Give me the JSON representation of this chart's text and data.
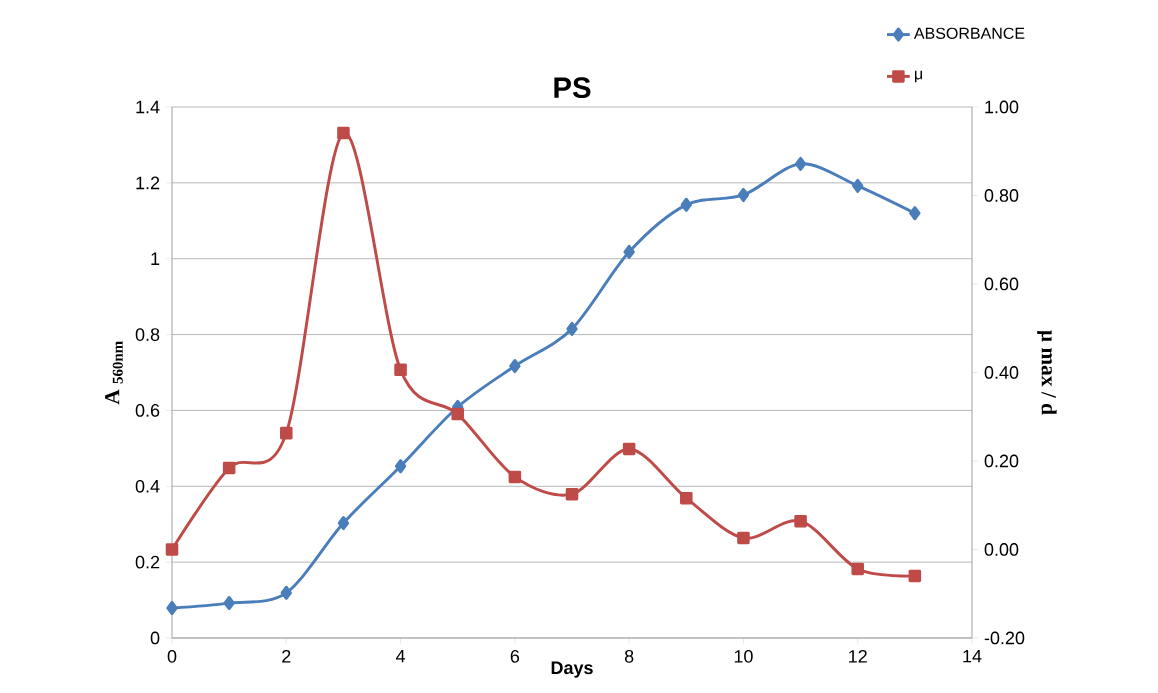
{
  "chart_data": {
    "type": "line",
    "title": "PS",
    "xlabel": "Days",
    "ylabel": "A $_{560nm}$",
    "y2label": "μ max / d",
    "x": [
      0,
      1,
      2,
      3,
      4,
      5,
      6,
      7,
      8,
      9,
      10,
      11,
      12,
      13
    ],
    "series": [
      {
        "name": "ABSORBANCE",
        "color": "#4a7ebb",
        "marker": "diamond",
        "values": [
          0.079,
          0.092,
          0.119,
          0.303,
          0.453,
          0.609,
          0.717,
          0.815,
          1.018,
          1.142,
          1.168,
          1.25,
          1.192,
          1.12
        ]
      },
      {
        "name": "μ",
        "color": "#be4b48",
        "marker": "square",
        "axis": "y2",
        "values": [
          0.0,
          0.184,
          0.263,
          0.941,
          0.406,
          0.306,
          0.164,
          0.125,
          0.227,
          0.116,
          0.026,
          0.064,
          -0.044,
          -0.06
        ]
      }
    ],
    "xlim": [
      0,
      14
    ],
    "xticks": [
      0,
      2,
      4,
      6,
      8,
      10,
      12,
      14
    ],
    "ylim": [
      0,
      1.4
    ],
    "yticks": [
      0,
      0.2,
      0.4,
      0.6,
      0.8,
      1,
      1.2,
      1.4
    ],
    "y2lim": [
      -0.2,
      1.0
    ],
    "y2ticks": [
      {
        "value": -0.2,
        "label": "-0.20"
      },
      {
        "value": 0.0,
        "label": "0.00"
      },
      {
        "value": 0.2,
        "label": "0.20"
      },
      {
        "value": 0.4,
        "label": "0.40"
      },
      {
        "value": 0.6,
        "label": "0.60"
      },
      {
        "value": 0.8,
        "label": "0.80"
      },
      {
        "value": 1.0,
        "label": "1.00"
      }
    ],
    "grid": "y",
    "legend": "top right"
  }
}
